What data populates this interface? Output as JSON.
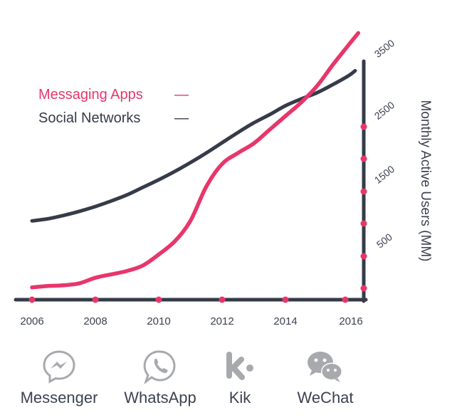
{
  "chart_data": {
    "type": "line",
    "xlabel": "",
    "ylabel": "Monthly Active Users (MM)",
    "x_ticks": [
      "2006",
      "2008",
      "2010",
      "2012",
      "2014",
      "2016"
    ],
    "y_ticks": [
      "500",
      "1500",
      "2500",
      "3500"
    ],
    "xlim": [
      2006,
      2016.4
    ],
    "ylim": [
      0,
      3500
    ],
    "grid": false,
    "legend_position": "top-left",
    "series": [
      {
        "name": "Messaging Apps",
        "color": "#e8366a",
        "x": [
          2006,
          2006.5,
          2007,
          2007.5,
          2008,
          2008.5,
          2009,
          2009.5,
          2010,
          2010.5,
          2011,
          2011.5,
          2012,
          2012.5,
          2013,
          2013.5,
          2014,
          2014.5,
          2015,
          2015.5,
          2016,
          2016.3
        ],
        "y": [
          180,
          200,
          210,
          240,
          320,
          370,
          420,
          500,
          660,
          850,
          1150,
          1650,
          1980,
          2140,
          2280,
          2480,
          2680,
          2880,
          3120,
          3430,
          3720,
          3890
        ]
      },
      {
        "name": "Social Networks",
        "color": "#353b48",
        "x": [
          2006,
          2006.5,
          2007,
          2007.5,
          2008,
          2008.5,
          2009,
          2009.5,
          2010,
          2010.5,
          2011,
          2011.5,
          2012,
          2012.5,
          2013,
          2013.5,
          2014,
          2014.5,
          2015,
          2015.5,
          2016,
          2016.2
        ],
        "y": [
          1150,
          1180,
          1230,
          1290,
          1360,
          1440,
          1530,
          1640,
          1750,
          1870,
          2000,
          2140,
          2290,
          2440,
          2580,
          2700,
          2830,
          2930,
          3020,
          3140,
          3270,
          3340
        ]
      }
    ]
  },
  "legend": {
    "messaging": {
      "label": "Messaging Apps",
      "dash": "—"
    },
    "social": {
      "label": "Social Networks",
      "dash": "—"
    }
  },
  "colors": {
    "accent": "#e8366a",
    "axis": "#353b48",
    "icon": "#a7a9ac",
    "text": "#3c4250"
  },
  "apps": [
    {
      "label": "Messenger",
      "icon": "messenger-icon"
    },
    {
      "label": "WhatsApp",
      "icon": "whatsapp-icon"
    },
    {
      "label": "Kik",
      "icon": "kik-icon"
    },
    {
      "label": "WeChat",
      "icon": "wechat-icon"
    }
  ]
}
